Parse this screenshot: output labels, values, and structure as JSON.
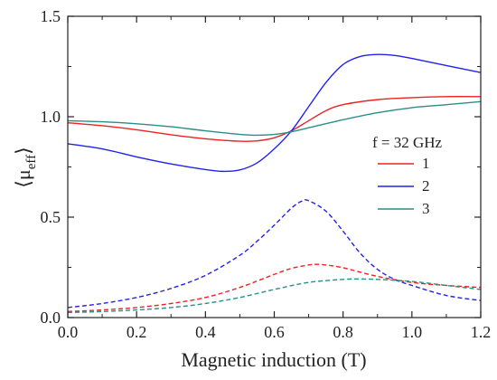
{
  "chart_data": {
    "type": "line",
    "title": "",
    "xlabel": "Magnetic induction (T)",
    "ylabel_main": "⟨μ",
    "ylabel_sub": "eff",
    "ylabel_close": "⟩",
    "xlim": [
      0,
      1.2
    ],
    "ylim": [
      0,
      1.5
    ],
    "x_ticks": [
      "0.0",
      "0.2",
      "0.4",
      "0.6",
      "0.8",
      "1.0",
      "1.2"
    ],
    "y_ticks": [
      "0.0",
      "0.5",
      "1.0",
      "1.5"
    ],
    "legend_title": "f = 32 GHz",
    "legend_position": "right",
    "grid": false,
    "series": [
      {
        "name": "1",
        "component": "real",
        "line_style": "solid",
        "color": "#ee2222",
        "x": [
          0.0,
          0.1,
          0.2,
          0.3,
          0.4,
          0.5,
          0.55,
          0.6,
          0.65,
          0.7,
          0.75,
          0.8,
          0.9,
          1.0,
          1.1,
          1.2
        ],
        "y": [
          0.97,
          0.955,
          0.935,
          0.91,
          0.89,
          0.878,
          0.88,
          0.895,
          0.93,
          0.98,
          1.03,
          1.06,
          1.085,
          1.095,
          1.1,
          1.1
        ]
      },
      {
        "name": "2",
        "component": "real",
        "line_style": "solid",
        "color": "#2222ee",
        "x": [
          0.0,
          0.1,
          0.2,
          0.3,
          0.4,
          0.45,
          0.5,
          0.55,
          0.6,
          0.65,
          0.7,
          0.75,
          0.8,
          0.85,
          0.9,
          0.95,
          1.0,
          1.1,
          1.2
        ],
        "y": [
          0.865,
          0.84,
          0.8,
          0.765,
          0.737,
          0.728,
          0.735,
          0.77,
          0.84,
          0.93,
          1.05,
          1.17,
          1.26,
          1.3,
          1.31,
          1.305,
          1.29,
          1.255,
          1.22
        ]
      },
      {
        "name": "3",
        "component": "real",
        "line_style": "solid",
        "color": "#2a8f86",
        "x": [
          0.0,
          0.1,
          0.2,
          0.3,
          0.4,
          0.5,
          0.55,
          0.6,
          0.65,
          0.7,
          0.8,
          0.9,
          1.0,
          1.1,
          1.2
        ],
        "y": [
          0.98,
          0.975,
          0.965,
          0.95,
          0.93,
          0.912,
          0.908,
          0.912,
          0.925,
          0.945,
          0.985,
          1.02,
          1.045,
          1.06,
          1.075
        ]
      },
      {
        "component": "imaginary",
        "line_style": "dashed",
        "color": "#ee2222",
        "x": [
          0.0,
          0.1,
          0.2,
          0.3,
          0.4,
          0.5,
          0.6,
          0.65,
          0.7,
          0.72,
          0.75,
          0.8,
          0.9,
          1.0,
          1.1,
          1.2
        ],
        "y": [
          0.03,
          0.038,
          0.05,
          0.07,
          0.1,
          0.15,
          0.215,
          0.245,
          0.262,
          0.265,
          0.262,
          0.248,
          0.205,
          0.175,
          0.16,
          0.15
        ]
      },
      {
        "component": "imaginary",
        "line_style": "dashed",
        "color": "#2222ee",
        "x": [
          0.0,
          0.1,
          0.2,
          0.3,
          0.4,
          0.5,
          0.55,
          0.6,
          0.65,
          0.68,
          0.7,
          0.75,
          0.8,
          0.85,
          0.9,
          0.95,
          1.0,
          1.1,
          1.2
        ],
        "y": [
          0.05,
          0.07,
          0.1,
          0.145,
          0.21,
          0.31,
          0.38,
          0.46,
          0.545,
          0.58,
          0.582,
          0.53,
          0.43,
          0.32,
          0.24,
          0.19,
          0.16,
          0.11,
          0.085
        ]
      },
      {
        "component": "imaginary",
        "line_style": "dashed",
        "color": "#2a8f86",
        "x": [
          0.0,
          0.1,
          0.2,
          0.3,
          0.4,
          0.5,
          0.6,
          0.7,
          0.8,
          0.85,
          0.9,
          1.0,
          1.1,
          1.2
        ],
        "y": [
          0.025,
          0.03,
          0.038,
          0.05,
          0.07,
          0.1,
          0.14,
          0.175,
          0.19,
          0.192,
          0.19,
          0.18,
          0.16,
          0.14
        ]
      }
    ]
  }
}
